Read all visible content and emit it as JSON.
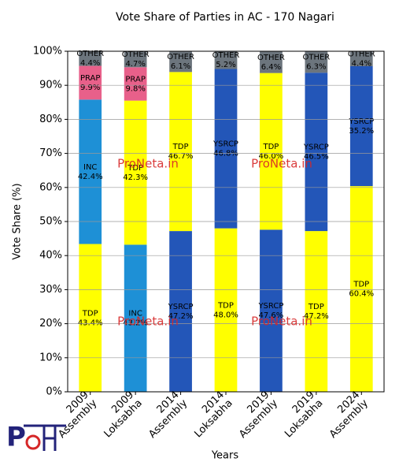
{
  "chart_data": {
    "type": "stacked-bar",
    "title": "Vote Share of Parties in AC - 170 Nagari",
    "x_label": "Years",
    "y_label": "Vote Share (%)",
    "watermark": "ProNeta.in",
    "categories": [
      "2009\nAssembly",
      "2009\nLoksabha",
      "2014\nAssembly",
      "2014\nLoksabha",
      "2019\nAssembly",
      "2019\nLoksabha",
      "2024\nAssembly"
    ],
    "colors": {
      "TDP": "#ffff00",
      "INC": "#1e90d6",
      "PRAP": "#e8608a",
      "YSRCP": "#2356b8",
      "OTHER": "#6c757d"
    },
    "stacks": [
      [
        {
          "name": "TDP",
          "value": 43.4,
          "value_label": "43.4%"
        },
        {
          "name": "INC",
          "value": 42.4,
          "value_label": "42.4%"
        },
        {
          "name": "PRAP",
          "value": 9.9,
          "value_label": "9.9%"
        },
        {
          "name": "OTHER",
          "value": 4.4,
          "value_label": "4.4%"
        }
      ],
      [
        {
          "name": "INC",
          "value": 43.2,
          "value_label": "43.2%"
        },
        {
          "name": "TDP",
          "value": 42.3,
          "value_label": "42.3%"
        },
        {
          "name": "PRAP",
          "value": 9.8,
          "value_label": "9.8%"
        },
        {
          "name": "OTHER",
          "value": 4.7,
          "value_label": "4.7%"
        }
      ],
      [
        {
          "name": "YSRCP",
          "value": 47.2,
          "value_label": "47.2%"
        },
        {
          "name": "TDP",
          "value": 46.7,
          "value_label": "46.7%"
        },
        {
          "name": "OTHER",
          "value": 6.1,
          "value_label": "6.1%"
        }
      ],
      [
        {
          "name": "TDP",
          "value": 48.0,
          "value_label": "48.0%"
        },
        {
          "name": "YSRCP",
          "value": 46.8,
          "value_label": "46.8%"
        },
        {
          "name": "OTHER",
          "value": 5.2,
          "value_label": "5.2%"
        }
      ],
      [
        {
          "name": "YSRCP",
          "value": 47.6,
          "value_label": "47.6%"
        },
        {
          "name": "TDP",
          "value": 46.0,
          "value_label": "46.0%"
        },
        {
          "name": "OTHER",
          "value": 6.4,
          "value_label": "6.4%"
        }
      ],
      [
        {
          "name": "TDP",
          "value": 47.2,
          "value_label": "47.2%"
        },
        {
          "name": "YSRCP",
          "value": 46.5,
          "value_label": "46.5%"
        },
        {
          "name": "OTHER",
          "value": 6.3,
          "value_label": "6.3%"
        }
      ],
      [
        {
          "name": "TDP",
          "value": 60.4,
          "value_label": "60.4%"
        },
        {
          "name": "YSRCP",
          "value": 35.2,
          "value_label": "35.2%"
        },
        {
          "name": "OTHER",
          "value": 4.4,
          "value_label": "4.4%"
        }
      ]
    ],
    "ylim": [
      0,
      100
    ],
    "yticks": [
      {
        "value": 0,
        "label": "0%"
      },
      {
        "value": 10,
        "label": "10%"
      },
      {
        "value": 20,
        "label": "20%"
      },
      {
        "value": 30,
        "label": "30%"
      },
      {
        "value": 40,
        "label": "40%"
      },
      {
        "value": 50,
        "label": "50%"
      },
      {
        "value": 60,
        "label": "60%"
      },
      {
        "value": 70,
        "label": "70%"
      },
      {
        "value": 80,
        "label": "80%"
      },
      {
        "value": 90,
        "label": "90%"
      },
      {
        "value": 100,
        "label": "100%"
      }
    ],
    "grid": true
  }
}
